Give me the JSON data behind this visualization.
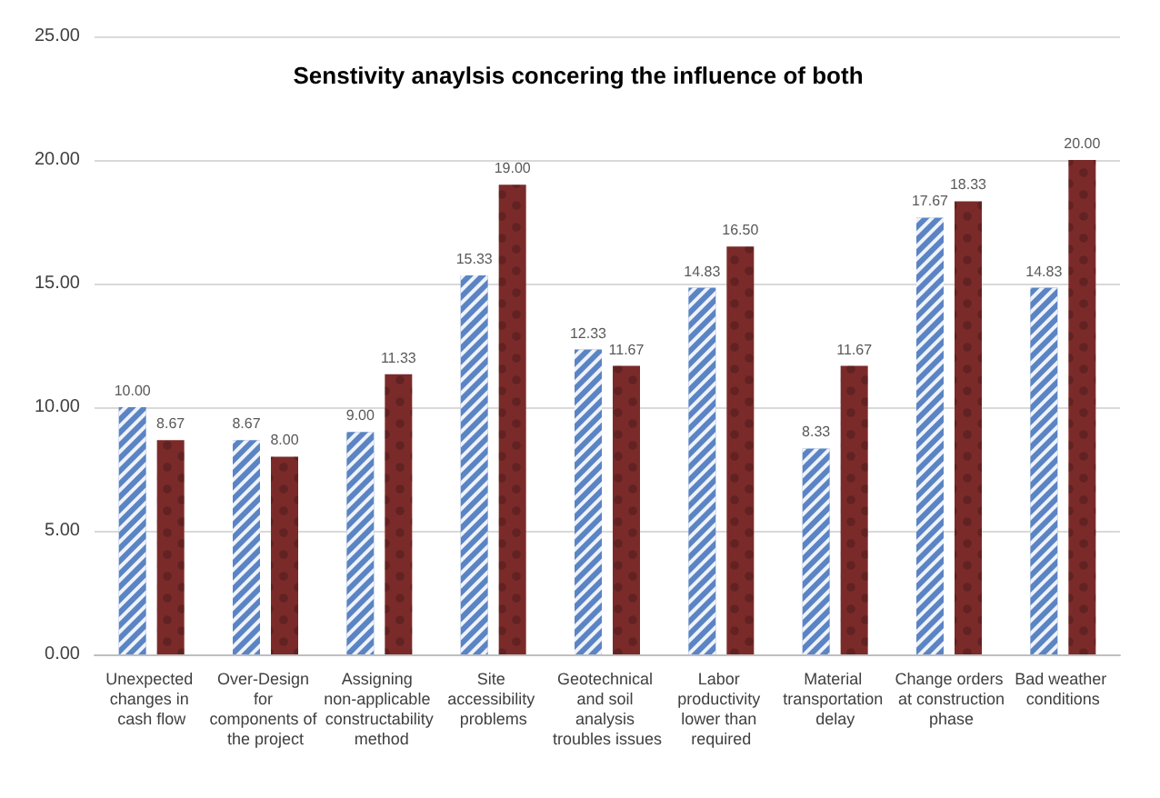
{
  "chart_data": {
    "type": "bar",
    "title": "Senstivity anaylsis concering the influence of both",
    "categories": [
      "Unexpected changes in cash flow",
      "Over-Design for components of the project",
      "Assigning non-applicable constructability method",
      "Site accessibility problems",
      "Geotechnical and soil analysis troubles issues",
      "Labor productivity lower than required",
      "Material transportation delay",
      "Change orders at construction phase",
      "Bad weather conditions"
    ],
    "series": [
      {
        "color": "#5b84c4",
        "values": [
          10,
          8.67,
          9,
          15.33,
          12.33,
          14.83,
          8.33,
          17.67,
          14.83
        ],
        "value_labels": [
          "10.00",
          "8.67",
          "9.00",
          "15.33",
          "12.33",
          "14.83",
          "8.33",
          "17.67",
          "14.83"
        ]
      },
      {
        "color": "#7b2a2a",
        "values": [
          8.67,
          8,
          11.33,
          19,
          11.67,
          16.5,
          11.67,
          18.33,
          20
        ],
        "value_labels": [
          "8.67",
          "8.00",
          "11.33",
          "19.00",
          "11.67",
          "16.50",
          "11.67",
          "18.33",
          "20.00"
        ]
      }
    ],
    "ylim": [
      0,
      25
    ],
    "yticks": [
      {
        "value": 0,
        "label": "0.00"
      },
      {
        "value": 5,
        "label": "5.00"
      },
      {
        "value": 10,
        "label": "10.00"
      },
      {
        "value": 15,
        "label": "15.00"
      },
      {
        "value": 20,
        "label": "20.00"
      },
      {
        "value": 25,
        "label": "25.00"
      }
    ],
    "grid": "y"
  }
}
